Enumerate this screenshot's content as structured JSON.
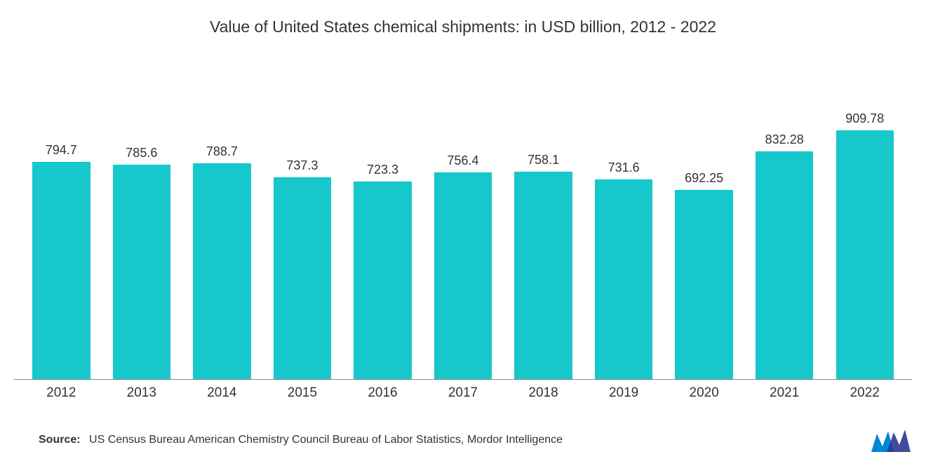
{
  "chart": {
    "type": "bar",
    "title": "Value of United States chemical shipments: in USD billion, 2012 - 2022",
    "title_fontsize": 23,
    "title_color": "#333333",
    "categories": [
      "2012",
      "2013",
      "2014",
      "2015",
      "2016",
      "2017",
      "2018",
      "2019",
      "2020",
      "2021",
      "2022"
    ],
    "values": [
      794.7,
      785.6,
      788.7,
      737.3,
      723.3,
      756.4,
      758.1,
      731.6,
      692.25,
      832.28,
      909.78
    ],
    "value_labels": [
      "794.7",
      "785.6",
      "788.7",
      "737.3",
      "723.3",
      "756.4",
      "758.1",
      "731.6",
      "692.25",
      "832.28",
      "909.78"
    ],
    "bar_color": "#16c7cb",
    "value_label_fontsize": 18,
    "value_label_color": "#333333",
    "xlabel_fontsize": 19,
    "xlabel_color": "#333333",
    "background_color": "#ffffff",
    "axis_line_color": "#888888",
    "y_domain_max": 1100,
    "y_domain_min": 0,
    "bar_width_ratio": 0.72
  },
  "source": {
    "label": "Source:",
    "text": "US Census Bureau American Chemistry Council Bureau of Labor Statistics, Mordor Intelligence",
    "fontsize": 16,
    "color": "#333333"
  },
  "logo": {
    "name": "mordor-logo",
    "fill1": "#0086d6",
    "fill2": "#2b3a8f"
  }
}
